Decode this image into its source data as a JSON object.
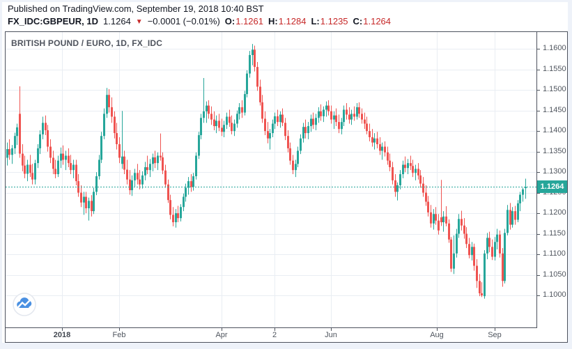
{
  "header": {
    "published_line": "Published on TradingView.com, September 19, 2018 10:40 BST",
    "symbol": "FX_IDC:GBPEUR, 1D",
    "last_price_text": "1.1264",
    "direction_icon": "▼",
    "change_text": "−0.0001 (−0.01%)",
    "ohlc": {
      "o_label": "O:",
      "o": "1.1261",
      "h_label": "H:",
      "h": "1.1284",
      "l_label": "L:",
      "l": "1.1235",
      "c_label": "C:",
      "c": "1.1264"
    }
  },
  "chart": {
    "title": "BRITISH POUND / EURO, 1D, FX_IDC",
    "price_badge": "1.1264",
    "accent_color": "#26a69a"
  },
  "icons": {
    "logo": "tradingview-cloud-logo"
  },
  "chart_data": {
    "type": "candlestick",
    "symbol": "FX_IDC:GBPEUR",
    "interval": "1D",
    "title": "BRITISH POUND / EURO, 1D, FX_IDC",
    "up_color": "#26a69a",
    "down_color": "#ef5350",
    "grid_color": "#e9edf3",
    "last_price": 1.1264,
    "last_price_line_color": "#26a69a",
    "y_axis": {
      "min": 1.0922,
      "max": 1.1641,
      "ticks": [
        1.1,
        1.105,
        1.11,
        1.115,
        1.12,
        1.125,
        1.13,
        1.135,
        1.14,
        1.145,
        1.15,
        1.155,
        1.16
      ]
    },
    "x_axis": {
      "slots": 208,
      "ticks": [
        {
          "i": 21.5,
          "label": "2018",
          "bold": true
        },
        {
          "i": 44,
          "label": "Feb",
          "bold": false
        },
        {
          "i": 84,
          "label": "Apr",
          "bold": false
        },
        {
          "i": 105,
          "label": "2",
          "bold": false
        },
        {
          "i": 127,
          "label": "Jun",
          "bold": false
        },
        {
          "i": 168.5,
          "label": "Aug",
          "bold": false
        },
        {
          "i": 191,
          "label": "Sep",
          "bold": false
        }
      ]
    },
    "candles": [
      [
        1.1335,
        1.1372,
        1.1316,
        1.1356
      ],
      [
        1.1356,
        1.138,
        1.133,
        1.1342
      ],
      [
        1.1342,
        1.1366,
        1.132,
        1.1358
      ],
      [
        1.1358,
        1.1396,
        1.1344,
        1.1388
      ],
      [
        1.1388,
        1.1418,
        1.1366,
        1.1409
      ],
      [
        1.1442,
        1.1509,
        1.1335,
        1.1345
      ],
      [
        1.1345,
        1.1368,
        1.1302,
        1.1316
      ],
      [
        1.1316,
        1.134,
        1.1285,
        1.1296
      ],
      [
        1.1296,
        1.133,
        1.1278,
        1.1318
      ],
      [
        1.1318,
        1.1342,
        1.1288,
        1.1298
      ],
      [
        1.1298,
        1.132,
        1.127,
        1.1282
      ],
      [
        1.1282,
        1.133,
        1.127,
        1.1322
      ],
      [
        1.1322,
        1.1368,
        1.131,
        1.1358
      ],
      [
        1.1358,
        1.1402,
        1.1344,
        1.1392
      ],
      [
        1.1392,
        1.1435,
        1.138,
        1.142
      ],
      [
        1.142,
        1.1438,
        1.139,
        1.1402
      ],
      [
        1.1402,
        1.1415,
        1.135,
        1.1362
      ],
      [
        1.1362,
        1.138,
        1.1322,
        1.1335
      ],
      [
        1.1335,
        1.1352,
        1.1295,
        1.1308
      ],
      [
        1.1308,
        1.133,
        1.1285,
        1.1295
      ],
      [
        1.1295,
        1.134,
        1.1288,
        1.1328
      ],
      [
        1.1328,
        1.136,
        1.131,
        1.1345
      ],
      [
        1.1345,
        1.1365,
        1.1318,
        1.133
      ],
      [
        1.133,
        1.1352,
        1.1305,
        1.134
      ],
      [
        1.134,
        1.1358,
        1.1312,
        1.1322
      ],
      [
        1.1322,
        1.1342,
        1.1295,
        1.1305
      ],
      [
        1.1305,
        1.133,
        1.1285,
        1.1318
      ],
      [
        1.1318,
        1.133,
        1.1268,
        1.1278
      ],
      [
        1.1278,
        1.1295,
        1.124,
        1.125
      ],
      [
        1.125,
        1.1268,
        1.1215,
        1.1226
      ],
      [
        1.1226,
        1.1252,
        1.1196,
        1.124
      ],
      [
        1.124,
        1.1252,
        1.12,
        1.1212
      ],
      [
        1.1212,
        1.1238,
        1.1182,
        1.123
      ],
      [
        1.123,
        1.1244,
        1.1192,
        1.1205
      ],
      [
        1.1205,
        1.1262,
        1.1198,
        1.1252
      ],
      [
        1.1252,
        1.13,
        1.1244,
        1.129
      ],
      [
        1.129,
        1.1342,
        1.1282,
        1.133
      ],
      [
        1.133,
        1.1398,
        1.1322,
        1.1388
      ],
      [
        1.1388,
        1.1455,
        1.138,
        1.1442
      ],
      [
        1.1442,
        1.1505,
        1.1432,
        1.1488
      ],
      [
        1.1488,
        1.1502,
        1.1445,
        1.1458
      ],
      [
        1.1458,
        1.1482,
        1.142,
        1.1435
      ],
      [
        1.1435,
        1.1448,
        1.1382,
        1.1395
      ],
      [
        1.1395,
        1.142,
        1.1355,
        1.1368
      ],
      [
        1.1368,
        1.1385,
        1.1322,
        1.1335
      ],
      [
        1.132,
        1.1449,
        1.1308,
        1.1338
      ],
      [
        1.1338,
        1.1352,
        1.1295,
        1.1306
      ],
      [
        1.1306,
        1.133,
        1.127,
        1.1282
      ],
      [
        1.1282,
        1.1305,
        1.1245,
        1.1256
      ],
      [
        1.1256,
        1.1292,
        1.1242,
        1.128
      ],
      [
        1.128,
        1.1308,
        1.1265,
        1.1298
      ],
      [
        1.1298,
        1.132,
        1.127,
        1.1282
      ],
      [
        1.1282,
        1.1305,
        1.1258,
        1.127
      ],
      [
        1.127,
        1.1302,
        1.126,
        1.1292
      ],
      [
        1.1292,
        1.1325,
        1.128,
        1.1312
      ],
      [
        1.1312,
        1.134,
        1.1295,
        1.1305
      ],
      [
        1.1305,
        1.1332,
        1.1288,
        1.132
      ],
      [
        1.132,
        1.1345,
        1.1302,
        1.1336
      ],
      [
        1.1336,
        1.1352,
        1.131,
        1.1322
      ],
      [
        1.1322,
        1.1348,
        1.1305,
        1.134
      ],
      [
        1.134,
        1.1394,
        1.1328,
        1.1336
      ],
      [
        1.1336,
        1.1348,
        1.1295,
        1.1304
      ],
      [
        1.1304,
        1.1318,
        1.1262,
        1.127
      ],
      [
        1.127,
        1.1282,
        1.1225,
        1.1232
      ],
      [
        1.1232,
        1.1245,
        1.1185,
        1.1196
      ],
      [
        1.1196,
        1.1215,
        1.1168,
        1.1178
      ],
      [
        1.1178,
        1.121,
        1.1165,
        1.12
      ],
      [
        1.12,
        1.1218,
        1.1178,
        1.1188
      ],
      [
        1.1188,
        1.1222,
        1.118,
        1.1215
      ],
      [
        1.1215,
        1.1248,
        1.1205,
        1.124
      ],
      [
        1.124,
        1.1272,
        1.1228,
        1.1262
      ],
      [
        1.1262,
        1.1288,
        1.1245,
        1.1278
      ],
      [
        1.1278,
        1.1295,
        1.1252,
        1.1264
      ],
      [
        1.1264,
        1.1298,
        1.1255,
        1.129
      ],
      [
        1.129,
        1.1348,
        1.1282,
        1.134
      ],
      [
        1.134,
        1.1398,
        1.1332,
        1.139
      ],
      [
        1.139,
        1.1442,
        1.138,
        1.1432
      ],
      [
        1.1432,
        1.1529,
        1.142,
        1.1448
      ],
      [
        1.1448,
        1.1472,
        1.142,
        1.1462
      ],
      [
        1.1462,
        1.1475,
        1.143,
        1.1442
      ],
      [
        1.1442,
        1.146,
        1.1415,
        1.1428
      ],
      [
        1.1428,
        1.1448,
        1.1402,
        1.1412
      ],
      [
        1.1412,
        1.1438,
        1.1395,
        1.1425
      ],
      [
        1.1425,
        1.1442,
        1.14,
        1.1408
      ],
      [
        1.1408,
        1.143,
        1.1388,
        1.1398
      ],
      [
        1.1398,
        1.1425,
        1.1385,
        1.1415
      ],
      [
        1.1415,
        1.1445,
        1.1405,
        1.1435
      ],
      [
        1.1435,
        1.1452,
        1.141,
        1.142
      ],
      [
        1.142,
        1.1438,
        1.1392,
        1.14
      ],
      [
        1.14,
        1.1428,
        1.1388,
        1.1418
      ],
      [
        1.1418,
        1.145,
        1.1408,
        1.1442
      ],
      [
        1.1442,
        1.1468,
        1.1428,
        1.1458
      ],
      [
        1.1458,
        1.1475,
        1.1432,
        1.1445
      ],
      [
        1.1445,
        1.1498,
        1.1438,
        1.149
      ],
      [
        1.149,
        1.1548,
        1.1482,
        1.154
      ],
      [
        1.154,
        1.1595,
        1.153,
        1.1585
      ],
      [
        1.1585,
        1.1612,
        1.156,
        1.1598
      ],
      [
        1.1598,
        1.1608,
        1.1545,
        1.1556
      ],
      [
        1.1556,
        1.1568,
        1.1498,
        1.1508
      ],
      [
        1.1508,
        1.1525,
        1.1462,
        1.147
      ],
      [
        1.147,
        1.1488,
        1.142,
        1.143
      ],
      [
        1.143,
        1.1448,
        1.139,
        1.14
      ],
      [
        1.14,
        1.1422,
        1.137,
        1.1382
      ],
      [
        1.1382,
        1.1405,
        1.1355,
        1.1395
      ],
      [
        1.1395,
        1.1428,
        1.1385,
        1.1418
      ],
      [
        1.1418,
        1.1445,
        1.1405,
        1.1436
      ],
      [
        1.1436,
        1.1452,
        1.1412,
        1.1422
      ],
      [
        1.1422,
        1.1448,
        1.1408,
        1.144
      ],
      [
        1.144,
        1.1455,
        1.1412,
        1.142
      ],
      [
        1.142,
        1.1432,
        1.1378,
        1.1388
      ],
      [
        1.1388,
        1.1402,
        1.1348,
        1.1358
      ],
      [
        1.1358,
        1.1372,
        1.1318,
        1.1328
      ],
      [
        1.1328,
        1.1342,
        1.1295,
        1.1305
      ],
      [
        1.1305,
        1.133,
        1.1288,
        1.132
      ],
      [
        1.132,
        1.1362,
        1.1312,
        1.1352
      ],
      [
        1.1352,
        1.1392,
        1.1344,
        1.1382
      ],
      [
        1.1382,
        1.142,
        1.1372,
        1.141
      ],
      [
        1.141,
        1.1428,
        1.1382,
        1.1395
      ],
      [
        1.1395,
        1.1422,
        1.138,
        1.1412
      ],
      [
        1.1412,
        1.144,
        1.1398,
        1.143
      ],
      [
        1.143,
        1.1445,
        1.1405,
        1.1415
      ],
      [
        1.1415,
        1.1442,
        1.1402,
        1.1432
      ],
      [
        1.1432,
        1.1458,
        1.142,
        1.1448
      ],
      [
        1.1448,
        1.1465,
        1.1425,
        1.1436
      ],
      [
        1.1436,
        1.146,
        1.1422,
        1.1452
      ],
      [
        1.1452,
        1.1472,
        1.1435,
        1.1462
      ],
      [
        1.1462,
        1.1475,
        1.1438,
        1.1448
      ],
      [
        1.1448,
        1.1462,
        1.1418,
        1.1428
      ],
      [
        1.1428,
        1.1448,
        1.1405,
        1.1438
      ],
      [
        1.1438,
        1.1455,
        1.1412,
        1.1422
      ],
      [
        1.1422,
        1.144,
        1.1395,
        1.1405
      ],
      [
        1.1405,
        1.1432,
        1.1392,
        1.1422
      ],
      [
        1.1422,
        1.1462,
        1.1412,
        1.1452
      ],
      [
        1.1452,
        1.1468,
        1.1428,
        1.144
      ],
      [
        1.144,
        1.1458,
        1.1418,
        1.1428
      ],
      [
        1.1428,
        1.1452,
        1.1415,
        1.1442
      ],
      [
        1.1442,
        1.146,
        1.1425,
        1.1435
      ],
      [
        1.1435,
        1.1468,
        1.1428,
        1.1458
      ],
      [
        1.1458,
        1.147,
        1.1432,
        1.1442
      ],
      [
        1.1442,
        1.1455,
        1.1418,
        1.1428
      ],
      [
        1.1428,
        1.1445,
        1.1405,
        1.1418
      ],
      [
        1.1418,
        1.1435,
        1.1392,
        1.14
      ],
      [
        1.14,
        1.1418,
        1.1375,
        1.1385
      ],
      [
        1.1385,
        1.1405,
        1.1362,
        1.1372
      ],
      [
        1.1372,
        1.1395,
        1.1355,
        1.1382
      ],
      [
        1.1382,
        1.1398,
        1.1358,
        1.1368
      ],
      [
        1.1368,
        1.1385,
        1.1342,
        1.1352
      ],
      [
        1.1352,
        1.1372,
        1.133,
        1.1362
      ],
      [
        1.1362,
        1.1375,
        1.1338,
        1.1348
      ],
      [
        1.1348,
        1.1362,
        1.1318,
        1.1328
      ],
      [
        1.1328,
        1.1345,
        1.1302,
        1.1312
      ],
      [
        1.1312,
        1.1325,
        1.127,
        1.128
      ],
      [
        1.128,
        1.1295,
        1.124,
        1.1252
      ],
      [
        1.1252,
        1.1275,
        1.1231,
        1.1268
      ],
      [
        1.1268,
        1.1305,
        1.1258,
        1.1295
      ],
      [
        1.1295,
        1.1328,
        1.1285,
        1.1318
      ],
      [
        1.1318,
        1.1338,
        1.13,
        1.131
      ],
      [
        1.131,
        1.1332,
        1.1295,
        1.1322
      ],
      [
        1.1322,
        1.134,
        1.1305,
        1.1315
      ],
      [
        1.1315,
        1.133,
        1.1288,
        1.1298
      ],
      [
        1.1298,
        1.1318,
        1.128,
        1.1308
      ],
      [
        1.1308,
        1.1322,
        1.1282,
        1.1292
      ],
      [
        1.1292,
        1.1305,
        1.1262,
        1.1272
      ],
      [
        1.1272,
        1.1288,
        1.124,
        1.125
      ],
      [
        1.125,
        1.1268,
        1.1218,
        1.1228
      ],
      [
        1.1228,
        1.1242,
        1.1192,
        1.1202
      ],
      [
        1.1202,
        1.122,
        1.1165,
        1.1175
      ],
      [
        1.1175,
        1.121,
        1.116,
        1.1198
      ],
      [
        1.1198,
        1.1215,
        1.1172,
        1.1182
      ],
      [
        1.1182,
        1.1198,
        1.1148,
        1.1158
      ],
      [
        1.119,
        1.1281,
        1.1169,
        1.1178
      ],
      [
        1.1178,
        1.1205,
        1.1155,
        1.1192
      ],
      [
        1.1192,
        1.1217,
        1.1168,
        1.1175
      ],
      [
        1.1175,
        1.1185,
        1.1128,
        1.1136
      ],
      [
        1.1136,
        1.1142,
        1.1057,
        1.1065
      ],
      [
        1.1065,
        1.1146,
        1.1052,
        1.1102
      ],
      [
        1.1102,
        1.1162,
        1.1092,
        1.115
      ],
      [
        1.115,
        1.1198,
        1.114,
        1.1186
      ],
      [
        1.1186,
        1.1206,
        1.1158,
        1.117
      ],
      [
        1.117,
        1.1188,
        1.1138,
        1.115
      ],
      [
        1.115,
        1.1166,
        1.1115,
        1.1125
      ],
      [
        1.1125,
        1.114,
        1.109,
        1.1098
      ],
      [
        1.1098,
        1.113,
        1.1085,
        1.1118
      ],
      [
        1.1118,
        1.1126,
        1.106,
        1.1072
      ],
      [
        1.1072,
        1.1088,
        1.1018,
        1.1035
      ],
      [
        1.1035,
        1.1052,
        1.0998,
        1.1005
      ],
      [
        1.1005,
        1.1032,
        1.0996,
        1.1
      ],
      [
        1.0998,
        1.111,
        1.0992,
        1.1102
      ],
      [
        1.1102,
        1.1152,
        1.1088,
        1.114
      ],
      [
        1.114,
        1.1155,
        1.1105,
        1.1118
      ],
      [
        1.1118,
        1.1136,
        1.1086,
        1.1094
      ],
      [
        1.1094,
        1.1142,
        1.1085,
        1.113
      ],
      [
        1.113,
        1.1162,
        1.1112,
        1.1148
      ],
      [
        1.1148,
        1.1158,
        1.1092,
        1.1102
      ],
      [
        1.1102,
        1.1115,
        1.1021,
        1.1035
      ],
      [
        1.1035,
        1.1162,
        1.1029,
        1.1152
      ],
      [
        1.1152,
        1.122,
        1.1146,
        1.1208
      ],
      [
        1.1208,
        1.1225,
        1.116,
        1.1172
      ],
      [
        1.1172,
        1.1215,
        1.1165,
        1.1205
      ],
      [
        1.1205,
        1.1218,
        1.1172,
        1.1184
      ],
      [
        1.1184,
        1.1232,
        1.1178,
        1.1224
      ],
      [
        1.1224,
        1.1252,
        1.1205,
        1.1245
      ],
      [
        1.1245,
        1.1262,
        1.1228,
        1.1258
      ],
      [
        1.1261,
        1.1284,
        1.1235,
        1.1264
      ]
    ]
  }
}
